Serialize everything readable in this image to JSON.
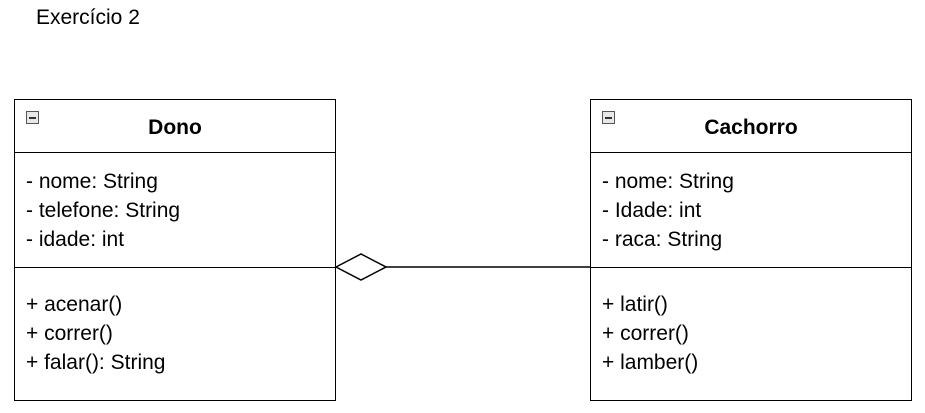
{
  "title": "Exercício 2",
  "classes": {
    "dono": {
      "name": "Dono",
      "attributes": [
        "- nome: String",
        "- telefone: String",
        "- idade: int"
      ],
      "methods": [
        "+ acenar()",
        "+ correr()",
        "+ falar(): String"
      ]
    },
    "cachorro": {
      "name": "Cachorro",
      "attributes": [
        "- nome: String",
        "- Idade: int",
        "- raca: String"
      ],
      "methods": [
        "+ latir()",
        "+ correr()",
        "+ lamber()"
      ]
    }
  },
  "relationship": {
    "type": "aggregation",
    "whole": "Dono",
    "part": "Cachorro"
  }
}
